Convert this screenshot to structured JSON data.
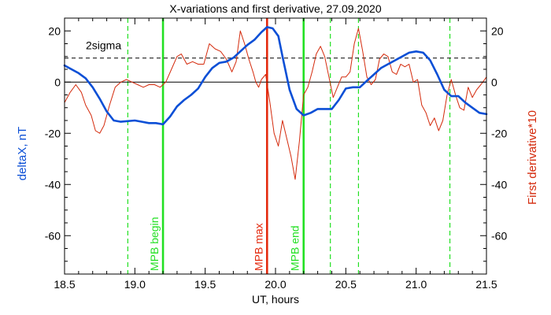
{
  "chart_data": {
    "type": "line",
    "title": "X-variations and first derivative, 27.09.2020",
    "xlabel": "UT, hours",
    "ylabel_left": "deltaX, nT",
    "ylabel_right": "First derivative*10",
    "xlim": [
      18.5,
      21.5
    ],
    "ylim": [
      -75,
      25
    ],
    "xticks": [
      18.5,
      19.0,
      19.5,
      20.0,
      20.5,
      21.0,
      21.5
    ],
    "xtick_labels": [
      "18.5",
      "19.0",
      "19.5",
      "20.0",
      "20.5",
      "21.0",
      "21.5"
    ],
    "yticks": [
      -60,
      -40,
      -20,
      0,
      20
    ],
    "ytick_labels": [
      "-60",
      "-40",
      "-20",
      "0",
      "20"
    ],
    "colors": {
      "deltaX": "#0b4fd6",
      "derivative": "#d42a0c",
      "mpb": "#22e022",
      "mpb_max": "#e42a0e",
      "axis": "#000000"
    },
    "sigma": {
      "label": "2sigma",
      "value": 9.4
    },
    "zero_line": 0,
    "vertical_markers": [
      {
        "x": 19.2,
        "label": "MPB begin",
        "style": "solid",
        "color": "#22e022"
      },
      {
        "x": 19.94,
        "label": "MPB max",
        "style": "solid",
        "color": "#e42a0e"
      },
      {
        "x": 20.2,
        "label": "MPB end",
        "style": "solid",
        "color": "#22e022"
      },
      {
        "x": 18.95,
        "label": "",
        "style": "dashed",
        "color": "#22e022"
      },
      {
        "x": 20.39,
        "label": "",
        "style": "dashed",
        "color": "#22e022"
      },
      {
        "x": 20.59,
        "label": "",
        "style": "dashed",
        "color": "#22e022"
      },
      {
        "x": 21.24,
        "label": "",
        "style": "dashed",
        "color": "#22e022"
      }
    ],
    "series": [
      {
        "name": "deltaX, nT",
        "color": "#0b4fd6",
        "x": [
          18.5,
          18.55,
          18.6,
          18.65,
          18.7,
          18.75,
          18.8,
          18.85,
          18.9,
          19.0,
          19.05,
          19.1,
          19.15,
          19.2,
          19.25,
          19.3,
          19.35,
          19.4,
          19.45,
          19.5,
          19.55,
          19.6,
          19.65,
          19.7,
          19.75,
          19.8,
          19.85,
          19.9,
          19.94,
          19.98,
          20.02,
          20.05,
          20.1,
          20.15,
          20.2,
          20.25,
          20.3,
          20.35,
          20.4,
          20.45,
          20.5,
          20.55,
          20.6,
          20.65,
          20.7,
          20.75,
          20.8,
          20.85,
          20.9,
          20.95,
          21.0,
          21.05,
          21.1,
          21.15,
          21.2,
          21.25,
          21.3,
          21.35,
          21.4,
          21.45,
          21.5
        ],
        "y": [
          6.5,
          5,
          3.5,
          1.5,
          -2,
          -6.5,
          -11.5,
          -15,
          -15.5,
          -15,
          -15.5,
          -16,
          -16,
          -16.5,
          -13.5,
          -9.5,
          -7,
          -5,
          -2.5,
          2,
          5.5,
          7.5,
          8,
          9.5,
          12,
          14.5,
          16.5,
          19.5,
          21.5,
          21,
          18,
          10,
          -3,
          -10.5,
          -13,
          -12,
          -10.5,
          -10.5,
          -10.5,
          -7,
          -2.5,
          -2,
          -2,
          0.5,
          3,
          5.5,
          7,
          8.5,
          10,
          11.5,
          12,
          11.5,
          8.5,
          3,
          -3,
          -5.5,
          -5.5,
          -8,
          -10,
          -12,
          -12.5
        ]
      },
      {
        "name": "First derivative*10",
        "color": "#d42a0c",
        "x": [
          18.5,
          18.54,
          18.58,
          18.62,
          18.65,
          18.69,
          18.72,
          18.75,
          18.78,
          18.82,
          18.86,
          18.9,
          18.94,
          18.98,
          19.02,
          19.06,
          19.1,
          19.14,
          19.18,
          19.22,
          19.26,
          19.3,
          19.33,
          19.37,
          19.41,
          19.45,
          19.49,
          19.53,
          19.57,
          19.61,
          19.65,
          19.69,
          19.72,
          19.75,
          19.78,
          19.81,
          19.84,
          19.86,
          19.88,
          19.9,
          19.93,
          19.96,
          19.99,
          20.02,
          20.05,
          20.08,
          20.11,
          20.14,
          20.17,
          20.2,
          20.23,
          20.26,
          20.29,
          20.32,
          20.35,
          20.38,
          20.41,
          20.44,
          20.47,
          20.5,
          20.53,
          20.56,
          20.59,
          20.62,
          20.65,
          20.68,
          20.71,
          20.74,
          20.77,
          20.8,
          20.83,
          20.86,
          20.89,
          20.92,
          20.95,
          20.98,
          21.01,
          21.04,
          21.07,
          21.1,
          21.13,
          21.16,
          21.19,
          21.22,
          21.25,
          21.28,
          21.31,
          21.34,
          21.37,
          21.4,
          21.43,
          21.46,
          21.5
        ],
        "y": [
          -8,
          -4,
          -1,
          -4,
          -9,
          -13,
          -19,
          -20,
          -17,
          -9,
          -2,
          0,
          1,
          0,
          -1,
          -2,
          -1,
          -1,
          -2,
          0,
          5,
          10,
          11,
          7,
          8,
          7,
          7,
          15,
          13,
          12,
          9,
          4,
          8,
          20,
          15,
          9,
          4,
          0,
          -2,
          1,
          3,
          -8,
          -20,
          -25,
          -15,
          -22,
          -29,
          -38,
          -23,
          -5,
          -2,
          4,
          11,
          14,
          10,
          2,
          -6,
          -2,
          2,
          2,
          4,
          15,
          21,
          12,
          2,
          -1,
          1,
          9,
          11,
          10,
          4,
          3,
          7,
          6,
          7,
          0,
          1,
          -9,
          -12,
          -17,
          -14,
          -19,
          -15,
          -5,
          1,
          -5,
          -10,
          -11,
          -2,
          -6,
          -3,
          -1,
          2
        ]
      }
    ]
  }
}
